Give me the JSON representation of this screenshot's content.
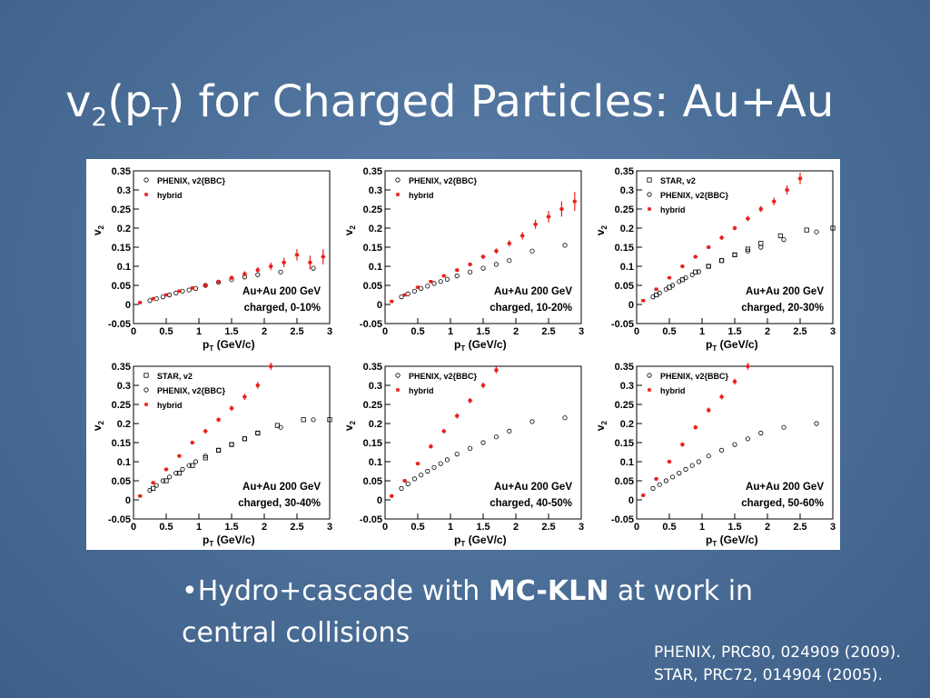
{
  "slide": {
    "title": [
      "v",
      "2",
      "(p",
      "T",
      ") for Charged Particles: Au+Au"
    ],
    "bullet": {
      "before": "•Hydro+cascade with",
      "bold": "MC-KLN",
      "after": "at work in central collisions"
    },
    "references": [
      "PHENIX, PRC80, 024909 (2009).",
      "STAR, PRC72, 014904 (2005)."
    ]
  },
  "chart_data": [
    {
      "type": "scatter",
      "ylabel": [
        "v",
        "2"
      ],
      "xlabel": [
        "p",
        "T",
        " (GeV/c)"
      ],
      "annotations": [
        "Au+Au 200 GeV",
        "charged, 0-10%"
      ],
      "xlim": [
        0,
        3
      ],
      "ylim": [
        -0.05,
        0.35
      ],
      "xticks": [
        0,
        0.5,
        1,
        1.5,
        2,
        2.5,
        3
      ],
      "yticks": [
        -0.05,
        0,
        0.05,
        0.1,
        0.15,
        0.2,
        0.25,
        0.3,
        0.35
      ],
      "series": [
        {
          "name": "PHENIX, v2{BBC}",
          "color": "#000000",
          "marker": "circle-open",
          "x": [
            0.25,
            0.35,
            0.45,
            0.55,
            0.65,
            0.75,
            0.85,
            0.95,
            1.1,
            1.3,
            1.5,
            1.7,
            1.9,
            2.25,
            2.75
          ],
          "values": [
            0.01,
            0.015,
            0.02,
            0.025,
            0.03,
            0.035,
            0.038,
            0.042,
            0.05,
            0.058,
            0.065,
            0.072,
            0.078,
            0.085,
            0.095
          ]
        },
        {
          "name": "hybrid",
          "color": "#e8201b",
          "marker": "cross",
          "x": [
            0.1,
            0.3,
            0.5,
            0.7,
            0.9,
            1.1,
            1.3,
            1.5,
            1.7,
            1.9,
            2.1,
            2.3,
            2.5,
            2.7,
            2.9
          ],
          "values": [
            0.005,
            0.015,
            0.025,
            0.035,
            0.043,
            0.05,
            0.06,
            0.07,
            0.08,
            0.09,
            0.1,
            0.11,
            0.13,
            0.11,
            0.125
          ],
          "errors": [
            0.003,
            0.003,
            0.004,
            0.004,
            0.004,
            0.005,
            0.005,
            0.006,
            0.007,
            0.008,
            0.01,
            0.012,
            0.015,
            0.018,
            0.02
          ]
        }
      ]
    },
    {
      "type": "scatter",
      "ylabel": [
        "v",
        "2"
      ],
      "xlabel": [
        "p",
        "T",
        " (GeV/c)"
      ],
      "annotations": [
        "Au+Au 200 GeV",
        "charged, 10-20%"
      ],
      "xlim": [
        0,
        3
      ],
      "ylim": [
        -0.05,
        0.35
      ],
      "xticks": [
        0,
        0.5,
        1,
        1.5,
        2,
        2.5,
        3
      ],
      "yticks": [
        -0.05,
        0,
        0.05,
        0.1,
        0.15,
        0.2,
        0.25,
        0.3,
        0.35
      ],
      "series": [
        {
          "name": "PHENIX, v2{BBC}",
          "color": "#000000",
          "marker": "circle-open",
          "x": [
            0.25,
            0.35,
            0.45,
            0.55,
            0.65,
            0.75,
            0.85,
            0.95,
            1.1,
            1.3,
            1.5,
            1.7,
            1.9,
            2.25,
            2.75
          ],
          "values": [
            0.02,
            0.028,
            0.035,
            0.042,
            0.048,
            0.055,
            0.06,
            0.066,
            0.075,
            0.085,
            0.095,
            0.105,
            0.115,
            0.14,
            0.155
          ]
        },
        {
          "name": "hybrid",
          "color": "#e8201b",
          "marker": "cross",
          "x": [
            0.1,
            0.3,
            0.5,
            0.7,
            0.9,
            1.1,
            1.3,
            1.5,
            1.7,
            1.9,
            2.1,
            2.3,
            2.5,
            2.7,
            2.9
          ],
          "values": [
            0.008,
            0.025,
            0.045,
            0.06,
            0.075,
            0.09,
            0.105,
            0.125,
            0.14,
            0.16,
            0.18,
            0.21,
            0.23,
            0.25,
            0.27
          ],
          "errors": [
            0.003,
            0.003,
            0.004,
            0.004,
            0.004,
            0.005,
            0.005,
            0.006,
            0.007,
            0.008,
            0.01,
            0.012,
            0.015,
            0.02,
            0.025
          ]
        }
      ]
    },
    {
      "type": "scatter",
      "ylabel": [
        "v",
        "2"
      ],
      "xlabel": [
        "p",
        "T",
        " (GeV/c)"
      ],
      "annotations": [
        "Au+Au 200 GeV",
        "charged, 20-30%"
      ],
      "xlim": [
        0,
        3
      ],
      "ylim": [
        -0.05,
        0.35
      ],
      "xticks": [
        0,
        0.5,
        1,
        1.5,
        2,
        2.5,
        3
      ],
      "yticks": [
        -0.05,
        0,
        0.05,
        0.1,
        0.15,
        0.2,
        0.25,
        0.3,
        0.35
      ],
      "series": [
        {
          "name": "STAR, v2",
          "color": "#000000",
          "marker": "square-open",
          "x": [
            0.3,
            0.5,
            0.7,
            0.9,
            1.1,
            1.3,
            1.5,
            1.7,
            1.9,
            2.2,
            2.6,
            3.0
          ],
          "values": [
            0.025,
            0.045,
            0.065,
            0.085,
            0.1,
            0.115,
            0.13,
            0.145,
            0.16,
            0.18,
            0.195,
            0.2
          ]
        },
        {
          "name": "PHENIX, v2{BBC}",
          "color": "#000000",
          "marker": "circle-open",
          "x": [
            0.25,
            0.35,
            0.45,
            0.55,
            0.65,
            0.75,
            0.85,
            0.95,
            1.1,
            1.3,
            1.5,
            1.7,
            1.9,
            2.25,
            2.75
          ],
          "values": [
            0.02,
            0.03,
            0.04,
            0.05,
            0.06,
            0.07,
            0.078,
            0.086,
            0.1,
            0.115,
            0.13,
            0.14,
            0.15,
            0.17,
            0.19
          ]
        },
        {
          "name": "hybrid",
          "color": "#e8201b",
          "marker": "cross",
          "x": [
            0.1,
            0.3,
            0.5,
            0.7,
            0.9,
            1.1,
            1.3,
            1.5,
            1.7,
            1.9,
            2.1,
            2.3,
            2.5
          ],
          "values": [
            0.01,
            0.04,
            0.07,
            0.1,
            0.125,
            0.15,
            0.175,
            0.2,
            0.225,
            0.25,
            0.27,
            0.3,
            0.33
          ],
          "errors": [
            0.004,
            0.004,
            0.004,
            0.005,
            0.005,
            0.005,
            0.006,
            0.006,
            0.007,
            0.008,
            0.01,
            0.012,
            0.015
          ]
        }
      ]
    },
    {
      "type": "scatter",
      "ylabel": [
        "v",
        "2"
      ],
      "xlabel": [
        "p",
        "T",
        " (GeV/c)"
      ],
      "annotations": [
        "Au+Au 200 GeV",
        "charged, 30-40%"
      ],
      "xlim": [
        0,
        3
      ],
      "ylim": [
        -0.05,
        0.35
      ],
      "xticks": [
        0,
        0.5,
        1,
        1.5,
        2,
        2.5,
        3
      ],
      "yticks": [
        -0.05,
        0,
        0.05,
        0.1,
        0.15,
        0.2,
        0.25,
        0.3,
        0.35
      ],
      "series": [
        {
          "name": "STAR, v2",
          "color": "#000000",
          "marker": "square-open",
          "x": [
            0.3,
            0.5,
            0.7,
            0.9,
            1.1,
            1.3,
            1.5,
            1.7,
            1.9,
            2.2,
            2.6,
            3.0
          ],
          "values": [
            0.03,
            0.05,
            0.07,
            0.09,
            0.11,
            0.13,
            0.145,
            0.16,
            0.175,
            0.195,
            0.21,
            0.21
          ]
        },
        {
          "name": "PHENIX, v2{BBC}",
          "color": "#000000",
          "marker": "circle-open",
          "x": [
            0.25,
            0.35,
            0.45,
            0.55,
            0.65,
            0.75,
            0.85,
            0.95,
            1.1,
            1.3,
            1.5,
            1.7,
            1.9,
            2.25,
            2.75
          ],
          "values": [
            0.025,
            0.038,
            0.05,
            0.06,
            0.07,
            0.08,
            0.09,
            0.1,
            0.115,
            0.13,
            0.145,
            0.16,
            0.175,
            0.19,
            0.21
          ]
        },
        {
          "name": "hybrid",
          "color": "#e8201b",
          "marker": "cross",
          "x": [
            0.1,
            0.3,
            0.5,
            0.7,
            0.9,
            1.1,
            1.3,
            1.5,
            1.7,
            1.9,
            2.1
          ],
          "values": [
            0.01,
            0.045,
            0.08,
            0.115,
            0.15,
            0.18,
            0.21,
            0.24,
            0.27,
            0.3,
            0.35
          ],
          "errors": [
            0.004,
            0.004,
            0.005,
            0.005,
            0.005,
            0.006,
            0.006,
            0.007,
            0.008,
            0.009,
            0.01
          ]
        }
      ]
    },
    {
      "type": "scatter",
      "ylabel": [
        "v",
        "2"
      ],
      "xlabel": [
        "p",
        "T",
        " (GeV/c)"
      ],
      "annotations": [
        "Au+Au 200 GeV",
        "charged, 40-50%"
      ],
      "xlim": [
        0,
        3
      ],
      "ylim": [
        -0.05,
        0.35
      ],
      "xticks": [
        0,
        0.5,
        1,
        1.5,
        2,
        2.5,
        3
      ],
      "yticks": [
        -0.05,
        0,
        0.05,
        0.1,
        0.15,
        0.2,
        0.25,
        0.3,
        0.35
      ],
      "series": [
        {
          "name": "PHENIX, v2{BBC}",
          "color": "#000000",
          "marker": "circle-open",
          "x": [
            0.25,
            0.35,
            0.45,
            0.55,
            0.65,
            0.75,
            0.85,
            0.95,
            1.1,
            1.3,
            1.5,
            1.7,
            1.9,
            2.25,
            2.75
          ],
          "values": [
            0.03,
            0.042,
            0.055,
            0.065,
            0.075,
            0.085,
            0.095,
            0.105,
            0.12,
            0.135,
            0.15,
            0.165,
            0.18,
            0.205,
            0.215
          ]
        },
        {
          "name": "hybrid",
          "color": "#e8201b",
          "marker": "cross",
          "x": [
            0.1,
            0.3,
            0.5,
            0.7,
            0.9,
            1.1,
            1.3,
            1.5,
            1.7
          ],
          "values": [
            0.01,
            0.05,
            0.095,
            0.14,
            0.18,
            0.22,
            0.26,
            0.3,
            0.34
          ],
          "errors": [
            0.005,
            0.005,
            0.005,
            0.006,
            0.006,
            0.007,
            0.007,
            0.008,
            0.009
          ]
        }
      ]
    },
    {
      "type": "scatter",
      "ylabel": [
        "v",
        "2"
      ],
      "xlabel": [
        "p",
        "T",
        " (GeV/c)"
      ],
      "annotations": [
        "Au+Au 200 GeV",
        "charged, 50-60%"
      ],
      "xlim": [
        0,
        3
      ],
      "ylim": [
        -0.05,
        0.35
      ],
      "xticks": [
        0,
        0.5,
        1,
        1.5,
        2,
        2.5,
        3
      ],
      "yticks": [
        -0.05,
        0,
        0.05,
        0.1,
        0.15,
        0.2,
        0.25,
        0.3,
        0.35
      ],
      "series": [
        {
          "name": "PHENIX, v2{BBC}",
          "color": "#000000",
          "marker": "circle-open",
          "x": [
            0.25,
            0.35,
            0.45,
            0.55,
            0.65,
            0.75,
            0.85,
            0.95,
            1.1,
            1.3,
            1.5,
            1.7,
            1.9,
            2.25,
            2.75
          ],
          "values": [
            0.03,
            0.04,
            0.05,
            0.06,
            0.07,
            0.08,
            0.09,
            0.1,
            0.115,
            0.13,
            0.145,
            0.16,
            0.175,
            0.19,
            0.2
          ]
        },
        {
          "name": "hybrid",
          "color": "#e8201b",
          "marker": "cross",
          "x": [
            0.1,
            0.3,
            0.5,
            0.7,
            0.9,
            1.1,
            1.3,
            1.5,
            1.7
          ],
          "values": [
            0.012,
            0.055,
            0.1,
            0.145,
            0.19,
            0.235,
            0.27,
            0.31,
            0.35
          ],
          "errors": [
            0.005,
            0.005,
            0.005,
            0.006,
            0.006,
            0.007,
            0.007,
            0.008,
            0.009
          ]
        }
      ]
    }
  ]
}
